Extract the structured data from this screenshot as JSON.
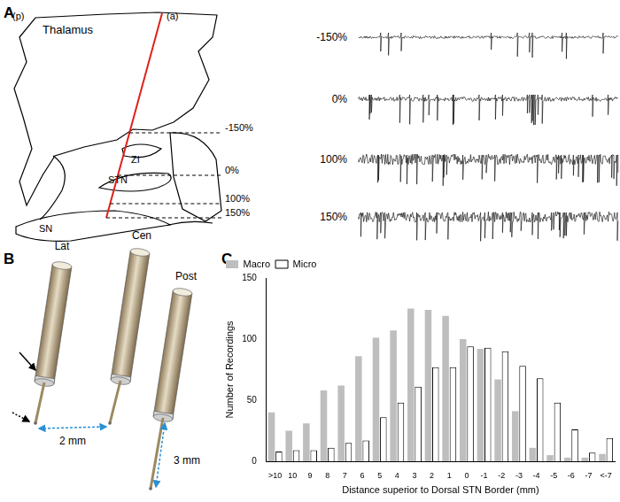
{
  "figure": {
    "panel_labels": [
      "A",
      "B",
      "C"
    ]
  },
  "panel_a": {
    "orientation_labels": [
      "(p)",
      "(a)"
    ],
    "structures": [
      "Thalamus",
      "ZI",
      "STN",
      "SN"
    ],
    "depth_labels": [
      "-150%",
      "0%",
      "100%",
      "150%"
    ]
  },
  "panel_b": {
    "electrodes": [
      "Lat",
      "Cen",
      "Post"
    ],
    "distances": [
      "2 mm",
      "3 mm"
    ]
  },
  "chart_data": {
    "type": "bar",
    "x_label": "Distance superior to Dorsal STN Border (mm)",
    "y_label": "Number of Recordings",
    "categories": [
      ">10",
      "10",
      "9",
      "8",
      "7",
      "6",
      "5",
      "4",
      "3",
      "2",
      "1",
      "0",
      "-1",
      "-2",
      "-3",
      "-4",
      "-5",
      "-6",
      "-7",
      "<-7"
    ],
    "series": [
      {
        "name": "Macro",
        "color": "#bebebe",
        "values": [
          40,
          25,
          31,
          58,
          62,
          86,
          101,
          107,
          125,
          124,
          119,
          100,
          92,
          67,
          41,
          11,
          5,
          3,
          3,
          6
        ]
      },
      {
        "name": "Micro",
        "color": "#ffffff",
        "values": [
          8,
          9,
          9,
          11,
          15,
          17,
          36,
          48,
          61,
          77,
          77,
          94,
          93,
          90,
          78,
          68,
          48,
          26,
          7,
          19
        ]
      }
    ],
    "ylim": [
      0,
      150
    ],
    "yticks": [
      0,
      50,
      100,
      150
    ],
    "grid": false,
    "legend": "top-left"
  }
}
